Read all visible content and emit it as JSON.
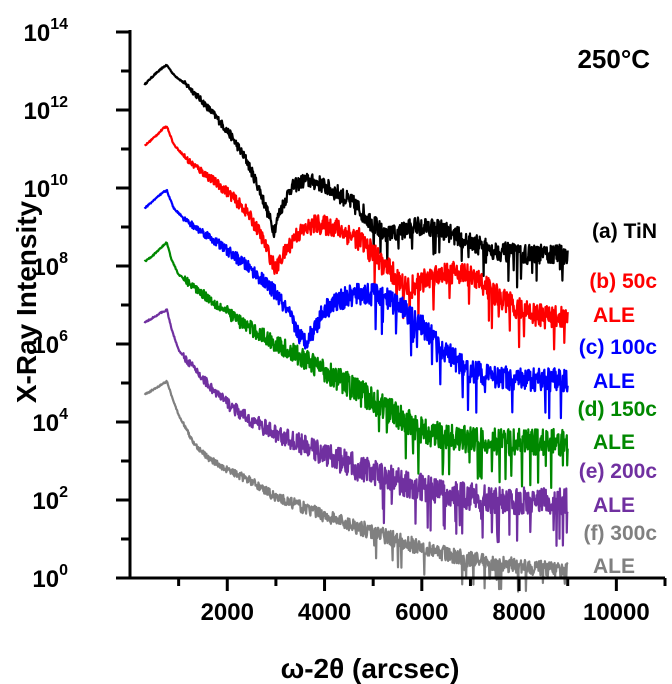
{
  "chart_data": {
    "type": "line",
    "annotation": "250°C",
    "xlabel": "ω-2θ (arcsec)",
    "ylabel": "X-Ray Intensity",
    "xlim": [
      0,
      11000
    ],
    "x_ticks": [
      2000,
      4000,
      6000,
      8000,
      10000
    ],
    "x_tick_labels": [
      "2000",
      "4000",
      "6000",
      "8000",
      "10000"
    ],
    "y_scale": "log",
    "ylim": [
      1,
      100000000000000
    ],
    "y_ticks": [
      {
        "base": "10",
        "exp": "0"
      },
      {
        "base": "10",
        "exp": "2"
      },
      {
        "base": "10",
        "exp": "4"
      },
      {
        "base": "10",
        "exp": "6"
      },
      {
        "base": "10",
        "exp": "8"
      },
      {
        "base": "10",
        "exp": "10"
      },
      {
        "base": "10",
        "exp": "12"
      },
      {
        "base": "10",
        "exp": "14"
      }
    ],
    "series": [
      {
        "line1": "(a) TiN",
        "line2": "",
        "color": "#000000",
        "noise": 0.25,
        "points": [
          [
            300,
            4500000000000.0
          ],
          [
            500,
            8000000000000.0
          ],
          [
            700,
            13000000000000.0
          ],
          [
            760,
            14000000000000.0
          ],
          [
            900,
            8000000000000.0
          ],
          [
            1200,
            4000000000000.0
          ],
          [
            1500,
            1600000000000.0
          ],
          [
            1800,
            600000000000.0
          ],
          [
            2100,
            200000000000.0
          ],
          [
            2400,
            50000000000.0
          ],
          [
            2650,
            10000000000.0
          ],
          [
            2850,
            2000000000.0
          ],
          [
            2960,
            800000000.0
          ],
          [
            3080,
            2500000000.0
          ],
          [
            3300,
            10000000000.0
          ],
          [
            3600,
            16000000000.0
          ],
          [
            3900,
            13000000000.0
          ],
          [
            4300,
            7000000000.0
          ],
          [
            4700,
            3000000000.0
          ],
          [
            5000,
            1200000000.0
          ],
          [
            5250,
            600000000.0
          ],
          [
            5500,
            700000000.0
          ],
          [
            5900,
            1100000000.0
          ],
          [
            6300,
            1000000000.0
          ],
          [
            6700,
            600000000.0
          ],
          [
            7000,
            400000000.0
          ],
          [
            7500,
            250000000.0
          ],
          [
            8000,
            200000000.0
          ],
          [
            8500,
            200000000.0
          ],
          [
            9000,
            200000000.0
          ]
        ]
      },
      {
        "line1": "(b) 50c",
        "line2": "ALE",
        "color": "#ff0000",
        "noise": 0.3,
        "points": [
          [
            300,
            120000000000.0
          ],
          [
            500,
            200000000000.0
          ],
          [
            700,
            350000000000.0
          ],
          [
            760,
            380000000000.0
          ],
          [
            900,
            130000000000.0
          ],
          [
            1200,
            50000000000.0
          ],
          [
            1600,
            20000000000.0
          ],
          [
            2000,
            8000000000.0
          ],
          [
            2400,
            2500000000.0
          ],
          [
            2700,
            600000000.0
          ],
          [
            2900,
            150000000.0
          ],
          [
            3000,
            80000000.0
          ],
          [
            3100,
            150000000.0
          ],
          [
            3400,
            600000000.0
          ],
          [
            3800,
            1200000000.0
          ],
          [
            4200,
            1000000000.0
          ],
          [
            4700,
            500000000.0
          ],
          [
            5100,
            150000000.0
          ],
          [
            5500,
            50000000.0
          ],
          [
            5700,
            25000000.0
          ],
          [
            6000,
            40000000.0
          ],
          [
            6400,
            70000000.0
          ],
          [
            6800,
            70000000.0
          ],
          [
            7200,
            40000000.0
          ],
          [
            7600,
            15000000.0
          ],
          [
            8000,
            8000000.0
          ],
          [
            8500,
            5000000.0
          ],
          [
            9000,
            5000000.0
          ]
        ]
      },
      {
        "line1": "(c) 100c",
        "line2": "ALE",
        "color": "#0000ff",
        "noise": 0.3,
        "points": [
          [
            300,
            3000000000.0
          ],
          [
            500,
            5000000000.0
          ],
          [
            700,
            8000000000.0
          ],
          [
            760,
            8500000000.0
          ],
          [
            900,
            3000000000.0
          ],
          [
            1200,
            1300000000.0
          ],
          [
            1600,
            600000000.0
          ],
          [
            2000,
            250000000.0
          ],
          [
            2500,
            80000000.0
          ],
          [
            3000,
            20000000.0
          ],
          [
            3300,
            5000000.0
          ],
          [
            3500,
            1500000.0
          ],
          [
            3600,
            1200000.0
          ],
          [
            3750,
            2000000.0
          ],
          [
            4000,
            8000000.0
          ],
          [
            4400,
            15000000.0
          ],
          [
            4800,
            20000000.0
          ],
          [
            5200,
            16000000.0
          ],
          [
            5600,
            8000000.0
          ],
          [
            6000,
            3000000.0
          ],
          [
            6500,
            600000.0
          ],
          [
            7000,
            200000.0
          ],
          [
            7500,
            150000.0
          ],
          [
            8000,
            120000.0
          ],
          [
            8500,
            120000.0
          ],
          [
            9000,
            120000.0
          ]
        ]
      },
      {
        "line1": "(d) 150c",
        "line2": "ALE",
        "color": "#008800",
        "noise": 0.35,
        "points": [
          [
            300,
            130000000.0
          ],
          [
            500,
            200000000.0
          ],
          [
            700,
            350000000.0
          ],
          [
            760,
            400000000.0
          ],
          [
            850,
            150000000.0
          ],
          [
            1000,
            60000000.0
          ],
          [
            1300,
            30000000.0
          ],
          [
            1800,
            10000000.0
          ],
          [
            2300,
            3500000.0
          ],
          [
            3000,
            1000000.0
          ],
          [
            3600,
            400000.0
          ],
          [
            4200,
            150000.0
          ],
          [
            4800,
            50000.0
          ],
          [
            5500,
            15000.0
          ],
          [
            6000,
            6000.0
          ],
          [
            6500,
            4000.0
          ],
          [
            7000,
            3500.0
          ],
          [
            8000,
            3000.0
          ],
          [
            9000,
            3000.0
          ]
        ]
      },
      {
        "line1": "(e) 200c",
        "line2": "ALE",
        "color": "#7030a0",
        "noise": 0.35,
        "points": [
          [
            300,
            3500000.0
          ],
          [
            500,
            5000000.0
          ],
          [
            700,
            7000000.0
          ],
          [
            760,
            7500000.0
          ],
          [
            850,
            2500000.0
          ],
          [
            1000,
            700000.0
          ],
          [
            1300,
            250000.0
          ],
          [
            1800,
            50000.0
          ],
          [
            2300,
            15000.0
          ],
          [
            3000,
            5000.0
          ],
          [
            4000,
            1500.0
          ],
          [
            4800,
            600
          ],
          [
            5500,
            300
          ],
          [
            6500,
            150
          ],
          [
            7500,
            100
          ],
          [
            8500,
            90
          ],
          [
            9000,
            90
          ]
        ]
      },
      {
        "line1": "(f) 300c",
        "line2": "ALE",
        "color": "#808080",
        "noise": 0.2,
        "points": [
          [
            300,
            50000.0
          ],
          [
            500,
            70000.0
          ],
          [
            700,
            100000.0
          ],
          [
            760,
            110000.0
          ],
          [
            850,
            50000.0
          ],
          [
            1000,
            15000.0
          ],
          [
            1300,
            3000.0
          ],
          [
            1600,
            1200.0
          ],
          [
            2000,
            600
          ],
          [
            2500,
            300
          ],
          [
            3000,
            120
          ],
          [
            4000,
            40
          ],
          [
            5000,
            15
          ],
          [
            6000,
            6
          ],
          [
            7000,
            3
          ],
          [
            8000,
            2
          ],
          [
            9000,
            1.5
          ]
        ]
      }
    ]
  }
}
